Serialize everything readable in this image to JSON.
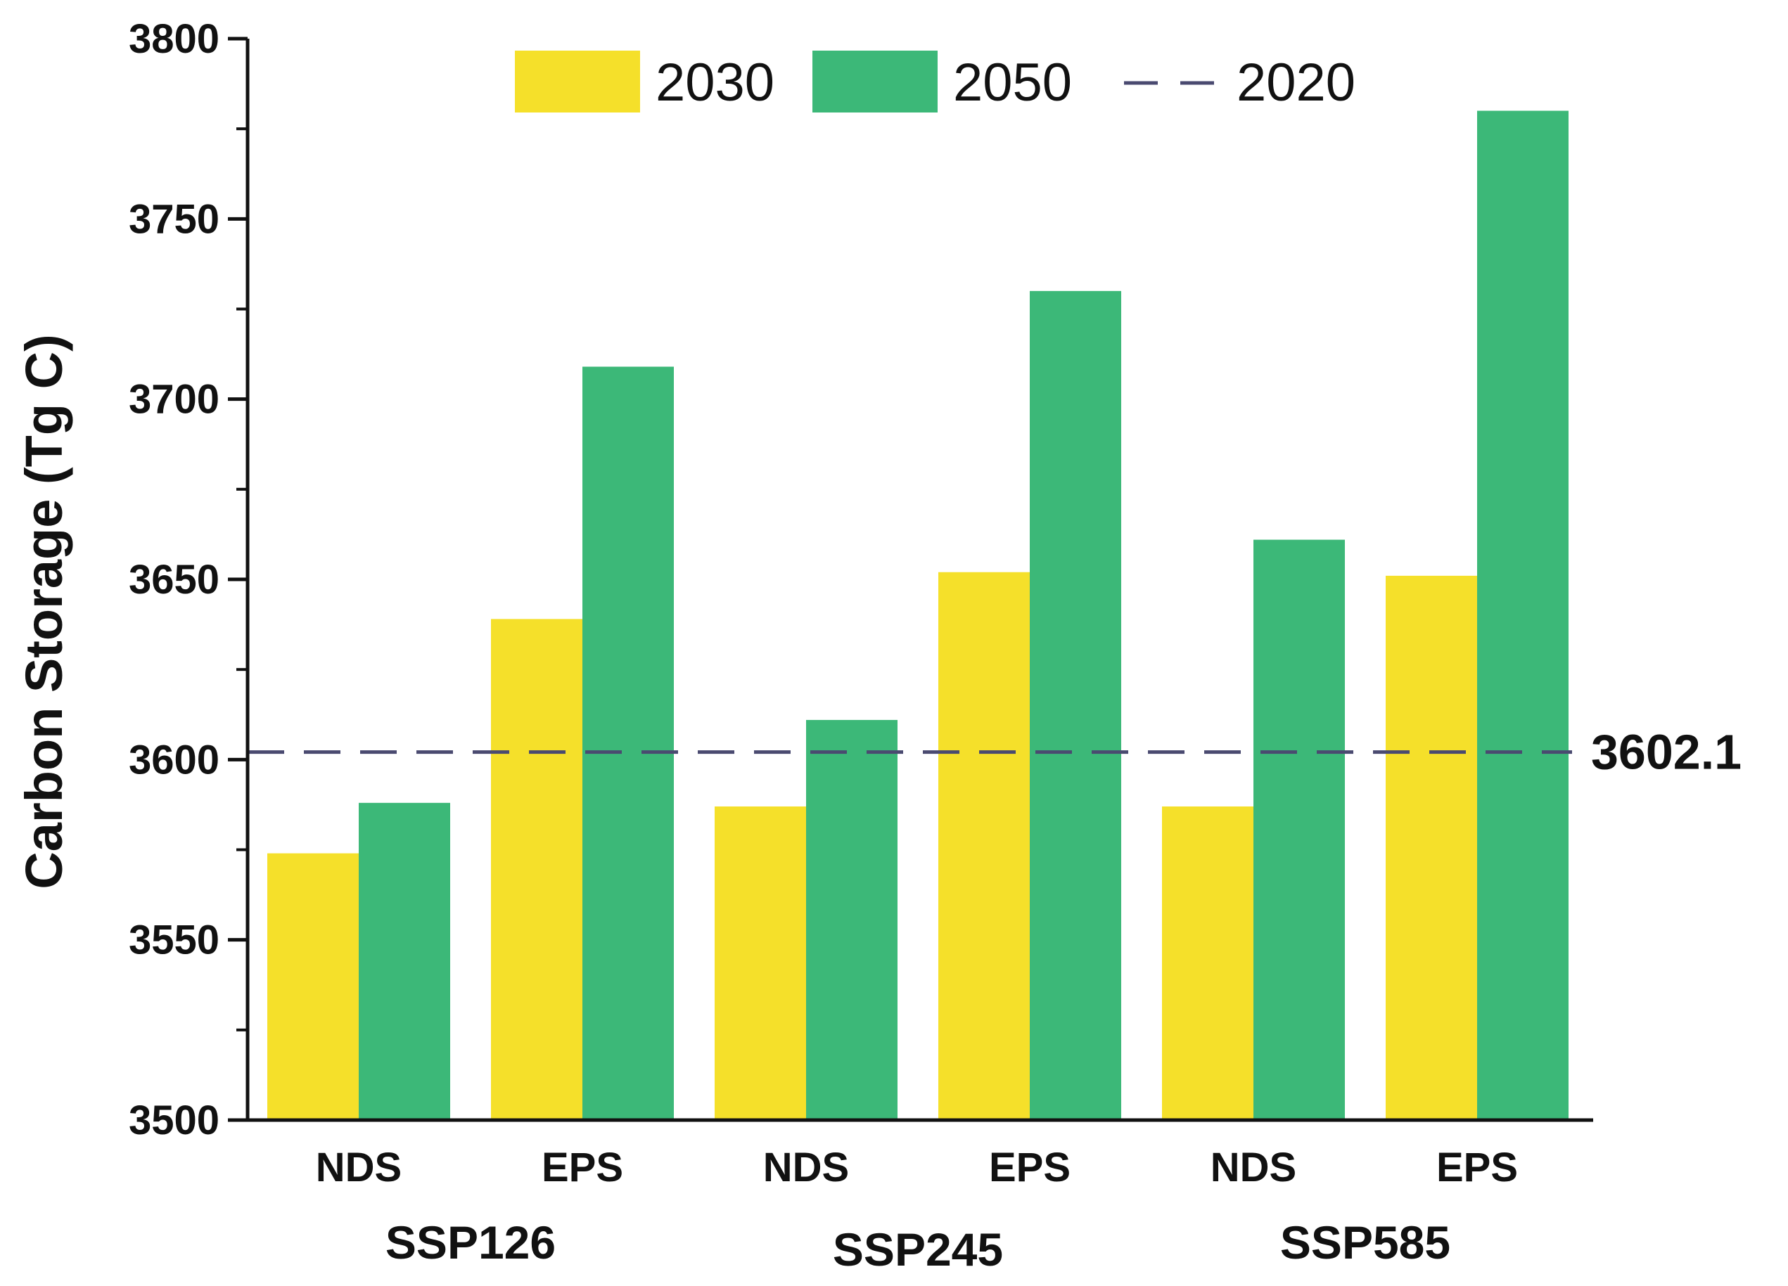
{
  "chart_data": {
    "type": "bar",
    "title": "",
    "xlabel": "",
    "ylabel": "Carbon Storage (Tg C)",
    "ylim": [
      3500,
      3800
    ],
    "yticks": [
      3500,
      3550,
      3600,
      3650,
      3700,
      3750,
      3800
    ],
    "grid": false,
    "legend_position": "top",
    "groups": [
      {
        "name": "SSP126",
        "categories": [
          "NDS",
          "EPS"
        ]
      },
      {
        "name": "SSP245",
        "categories": [
          "NDS",
          "EPS"
        ]
      },
      {
        "name": "SSP585",
        "categories": [
          "NDS",
          "EPS"
        ]
      }
    ],
    "categories": [
      "NDS",
      "EPS",
      "NDS",
      "EPS",
      "NDS",
      "EPS"
    ],
    "series": [
      {
        "name": "2030",
        "color": "#f5e02a",
        "values": [
          3574,
          3639,
          3587,
          3652,
          3587,
          3651
        ]
      },
      {
        "name": "2050",
        "color": "#3cb878",
        "values": [
          3588,
          3709,
          3611,
          3730,
          3661,
          3780
        ]
      }
    ],
    "reference_line": {
      "name": "2020",
      "value": 3602.1,
      "label": "3602.1",
      "color": "#4a4a70",
      "style": "dashed"
    }
  }
}
